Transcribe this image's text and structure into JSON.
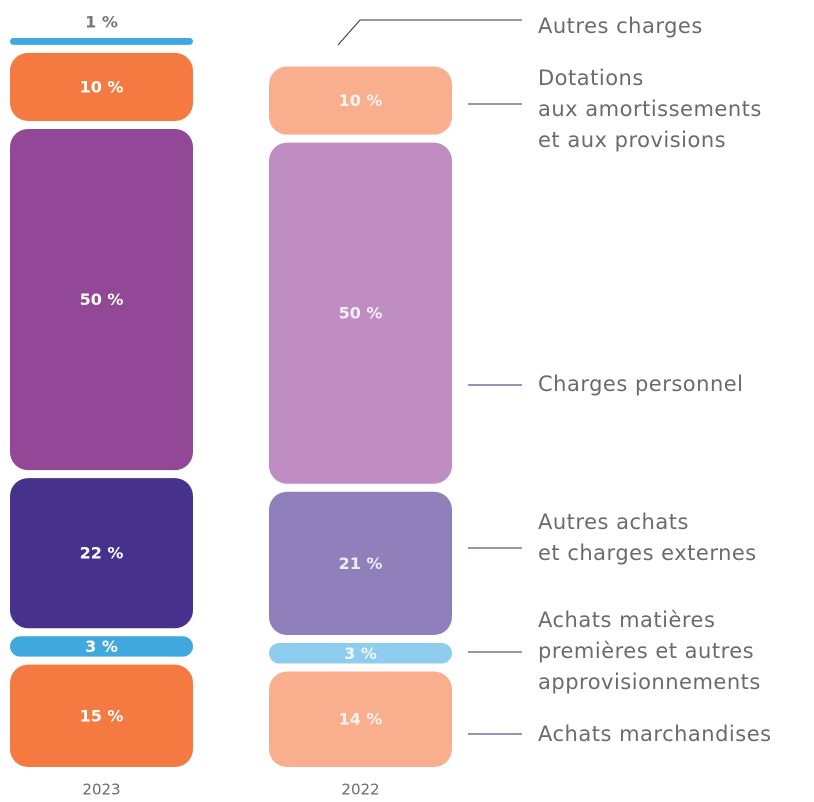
{
  "chart_data": {
    "type": "bar",
    "stacked": true,
    "categories": [
      "2023",
      "2022"
    ],
    "series": [
      {
        "name": "Achats marchandises",
        "colors": [
          "#f47a42",
          "#f9ae8e"
        ],
        "values": [
          15,
          14
        ],
        "value_labels": [
          "15 %",
          "14 %"
        ]
      },
      {
        "name": "Achats matières\npremières et autres\napprovisionnements",
        "colors": [
          "#3fa9dd",
          "#8fcdee"
        ],
        "values": [
          3,
          3
        ],
        "value_labels": [
          "3 %",
          "3 %"
        ]
      },
      {
        "name": "Autres achats\net charges externes",
        "colors": [
          "#46318d",
          "#8f80bb"
        ],
        "values": [
          22,
          21
        ],
        "value_labels": [
          "22 %",
          "21 %"
        ]
      },
      {
        "name": "Charges personnel",
        "colors": [
          "#934797",
          "#c08dc2"
        ],
        "values": [
          50,
          50
        ],
        "value_labels": [
          "50 %",
          "50 %"
        ]
      },
      {
        "name": "Dotations\naux amortissements\net aux provisions",
        "colors": [
          "#f47a42",
          "#f9ae8e"
        ],
        "values": [
          10,
          10
        ],
        "value_labels": [
          "10 %",
          "10 %"
        ]
      },
      {
        "name": "Autres charges",
        "colors": [
          "#3fa9dd",
          null
        ],
        "values": [
          1,
          null
        ],
        "value_labels": [
          "1 %",
          null
        ]
      }
    ]
  }
}
